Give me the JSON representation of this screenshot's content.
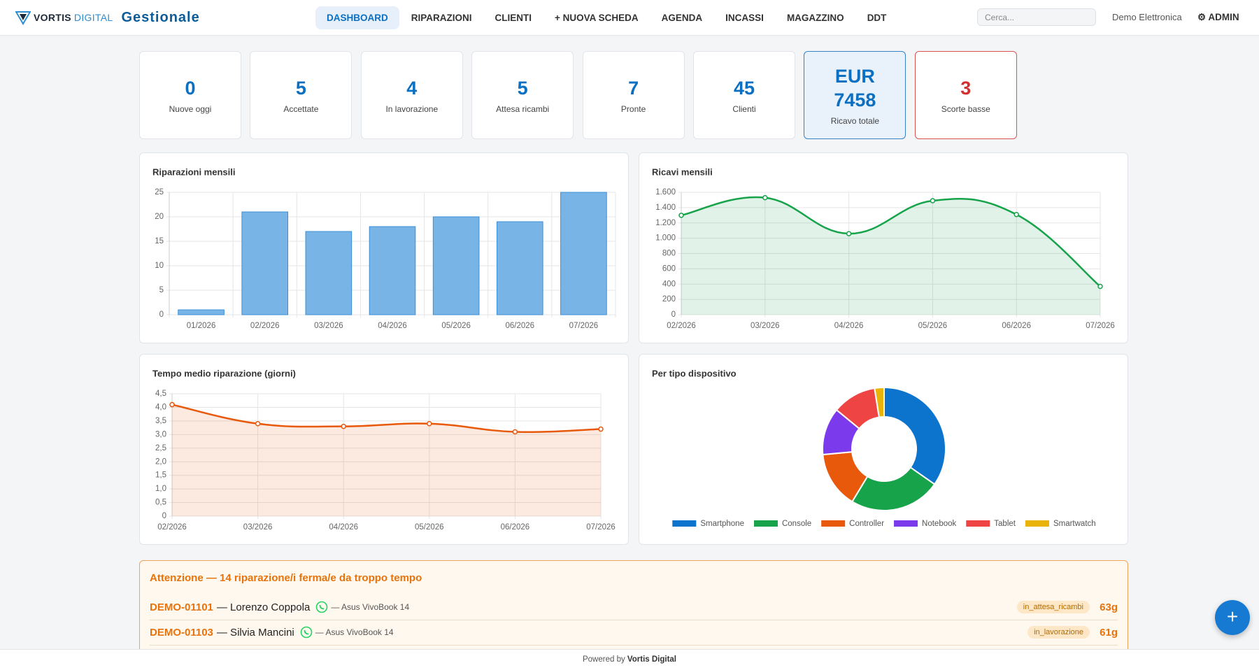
{
  "header": {
    "brand": {
      "name": "VORTIS",
      "sub": "DIGITAL",
      "app": "Gestionale"
    },
    "nav": [
      "DASHBOARD",
      "RIPARAZIONI",
      "CLIENTI",
      "+ NUOVA SCHEDA",
      "AGENDA",
      "INCASSI",
      "MAGAZZINO",
      "DDT"
    ],
    "search_placeholder": "Cerca...",
    "shop": "Demo Elettronica",
    "user": "⚙ ADMIN"
  },
  "stats": [
    {
      "value": 0,
      "label": "Nuove oggi"
    },
    {
      "value": 5,
      "label": "Accettate"
    },
    {
      "value": 4,
      "label": "In lavorazione"
    },
    {
      "value": 5,
      "label": "Attesa ricambi"
    },
    {
      "value": 7,
      "label": "Pronte"
    },
    {
      "value": 45,
      "label": "Clienti"
    },
    {
      "value": "EUR 7458",
      "label": "Ricavo totale"
    },
    {
      "value": 3,
      "label": "Scorte basse"
    }
  ],
  "chart_data": [
    {
      "type": "bar",
      "title": "Riparazioni mensili",
      "categories": [
        "01/2026",
        "02/2026",
        "03/2026",
        "04/2026",
        "05/2026",
        "06/2026",
        "07/2026"
      ],
      "values": [
        1,
        21,
        17,
        18,
        20,
        19,
        25
      ],
      "color": "#78b5e6",
      "ylim": [
        0,
        25
      ],
      "yticks": [
        0,
        5,
        10,
        15,
        20,
        25
      ],
      "grid": true
    },
    {
      "type": "line",
      "title": "Ricavi mensili",
      "categories": [
        "02/2026",
        "03/2026",
        "04/2026",
        "05/2026",
        "06/2026",
        "07/2026"
      ],
      "values": [
        1300,
        1530,
        1060,
        1490,
        1310,
        370
      ],
      "color": "#16a34a",
      "ylim": [
        0,
        1600
      ],
      "yticks": [
        0,
        200,
        400,
        600,
        800,
        {
          "value": 1000,
          "label": "1.000"
        },
        {
          "value": 1200,
          "label": "1.200"
        },
        {
          "value": 1400,
          "label": "1.400"
        },
        {
          "value": 1600,
          "label": "1.600"
        }
      ],
      "grid": true
    },
    {
      "type": "line",
      "title": "Tempo medio riparazione (giorni)",
      "categories": [
        "02/2026",
        "03/2026",
        "04/2026",
        "05/2026",
        "06/2026",
        "07/2026"
      ],
      "values": [
        4.1,
        3.4,
        3.3,
        3.4,
        3.1,
        3.2
      ],
      "color": "#e8590c",
      "ylim": [
        0,
        4.5
      ],
      "yticks": [
        0,
        {
          "value": 0.5,
          "label": "0,5"
        },
        {
          "value": 1,
          "label": "1,0"
        },
        {
          "value": 1.5,
          "label": "1,5"
        },
        {
          "value": 2,
          "label": "2,0"
        },
        {
          "value": 2.5,
          "label": "2,5"
        },
        {
          "value": 3,
          "label": "3,0"
        },
        {
          "value": 3.5,
          "label": "3,5"
        },
        {
          "value": 4,
          "label": "4,0"
        },
        {
          "value": 4.5,
          "label": "4,5"
        }
      ],
      "grid": true
    },
    {
      "type": "pie",
      "title": "Per tipo dispositivo",
      "categories": [
        "Smartphone",
        "Console",
        "Controller",
        "Notebook",
        "Tablet",
        "Smartwatch"
      ],
      "values": [
        42,
        29,
        18,
        15,
        14,
        3
      ],
      "colors": [
        "#0d74ce",
        "#16a34a",
        "#e8590c",
        "#7c3aed",
        "#ef4444",
        "#eab308"
      ],
      "legend": "bottom"
    }
  ],
  "alert": {
    "title": "Attenzione — 14 riparazione/i ferma/e da troppo tempo",
    "rows": [
      {
        "code": "DEMO-01101",
        "customer": "— Lorenzo Coppola",
        "device": "— Asus VivoBook 14",
        "status": "in_attesa_ricambi",
        "days": "63g"
      },
      {
        "code": "DEMO-01103",
        "customer": "— Silvia Mancini",
        "device": "— Asus VivoBook 14",
        "status": "in_lavorazione",
        "days": "61g"
      }
    ]
  },
  "fab": "+",
  "footer": {
    "prefix": "Powered by",
    "brand": "Vortis Digital"
  }
}
